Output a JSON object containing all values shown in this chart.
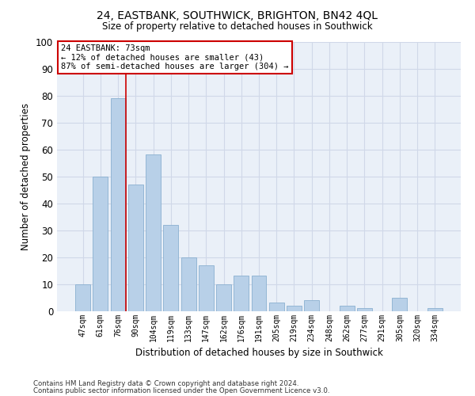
{
  "title": "24, EASTBANK, SOUTHWICK, BRIGHTON, BN42 4QL",
  "subtitle": "Size of property relative to detached houses in Southwick",
  "xlabel": "Distribution of detached houses by size in Southwick",
  "ylabel": "Number of detached properties",
  "categories": [
    "47sqm",
    "61sqm",
    "76sqm",
    "90sqm",
    "104sqm",
    "119sqm",
    "133sqm",
    "147sqm",
    "162sqm",
    "176sqm",
    "191sqm",
    "205sqm",
    "219sqm",
    "234sqm",
    "248sqm",
    "262sqm",
    "277sqm",
    "291sqm",
    "305sqm",
    "320sqm",
    "334sqm"
  ],
  "values": [
    10,
    50,
    79,
    47,
    58,
    32,
    20,
    17,
    10,
    13,
    13,
    3,
    2,
    4,
    0,
    2,
    1,
    0,
    5,
    0,
    1
  ],
  "bar_color": "#b8d0e8",
  "bar_edge_color": "#8ab0d0",
  "grid_color": "#d0d8e8",
  "background_color": "#eaf0f8",
  "annotation_box_color": "#ffffff",
  "annotation_border_color": "#cc0000",
  "red_line_x": 2.43,
  "annotation_text_line1": "24 EASTBANK: 73sqm",
  "annotation_text_line2": "← 12% of detached houses are smaller (43)",
  "annotation_text_line3": "87% of semi-detached houses are larger (304) →",
  "ylim": [
    0,
    100
  ],
  "yticks": [
    0,
    10,
    20,
    30,
    40,
    50,
    60,
    70,
    80,
    90,
    100
  ],
  "footer_line1": "Contains HM Land Registry data © Crown copyright and database right 2024.",
  "footer_line2": "Contains public sector information licensed under the Open Government Licence v3.0."
}
